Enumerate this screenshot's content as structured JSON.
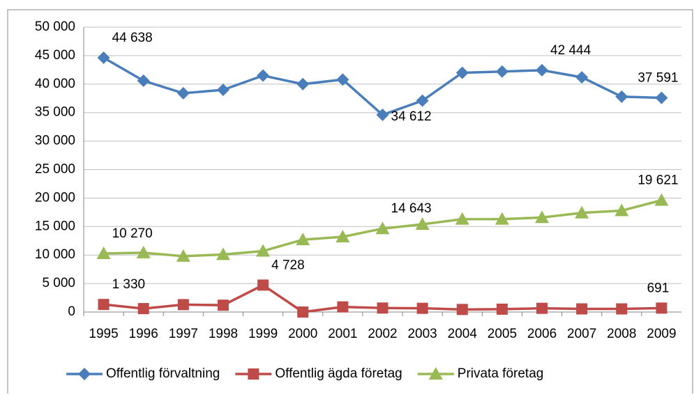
{
  "chart_data": {
    "type": "line",
    "categories": [
      "1995",
      "1996",
      "1997",
      "1998",
      "1999",
      "2000",
      "2001",
      "2002",
      "2003",
      "2004",
      "2005",
      "2006",
      "2007",
      "2008",
      "2009"
    ],
    "series": [
      {
        "name": "Offentlig förvaltning",
        "color": "#4a7ebb",
        "marker": "diamond",
        "values": [
          44638,
          40600,
          38400,
          39000,
          41500,
          40000,
          40800,
          34612,
          37100,
          42000,
          42200,
          42444,
          41200,
          37800,
          37591
        ],
        "value_labels": [
          "44 638",
          null,
          null,
          null,
          null,
          null,
          null,
          "34 612",
          null,
          null,
          null,
          "42 444",
          null,
          null,
          "37 591"
        ]
      },
      {
        "name": "Offentlig ägda företag",
        "color": "#be4b48",
        "marker": "square",
        "values": [
          1330,
          600,
          1300,
          1200,
          4728,
          0,
          900,
          700,
          650,
          450,
          500,
          650,
          550,
          550,
          691
        ],
        "value_labels": [
          "1 330",
          null,
          null,
          null,
          "4 728",
          null,
          null,
          null,
          null,
          null,
          null,
          null,
          null,
          null,
          "691"
        ]
      },
      {
        "name": "Privata företag",
        "color": "#98b954",
        "marker": "triangle",
        "values": [
          10270,
          10400,
          9800,
          10100,
          10700,
          12700,
          13200,
          14643,
          15400,
          16300,
          16300,
          16600,
          17400,
          17800,
          19621
        ],
        "value_labels": [
          "10 270",
          null,
          null,
          null,
          null,
          null,
          null,
          "14 643",
          null,
          null,
          null,
          null,
          null,
          null,
          "19 621"
        ]
      }
    ],
    "ylim": [
      0,
      50000
    ],
    "yticks": [
      0,
      {
        "value": 5000,
        "label": "5 000"
      },
      {
        "value": 10000,
        "label": "10 000"
      },
      {
        "value": 15000,
        "label": "15 000"
      },
      {
        "value": 20000,
        "label": "20 000"
      },
      {
        "value": 25000,
        "label": "25 000"
      },
      {
        "value": 30000,
        "label": "30 000"
      },
      {
        "value": 35000,
        "label": "35 000"
      },
      {
        "value": 40000,
        "label": "40 000"
      },
      {
        "value": 45000,
        "label": "45 000"
      },
      {
        "value": 50000,
        "label": "50 000"
      }
    ],
    "grid": true,
    "legend": "bottom"
  }
}
